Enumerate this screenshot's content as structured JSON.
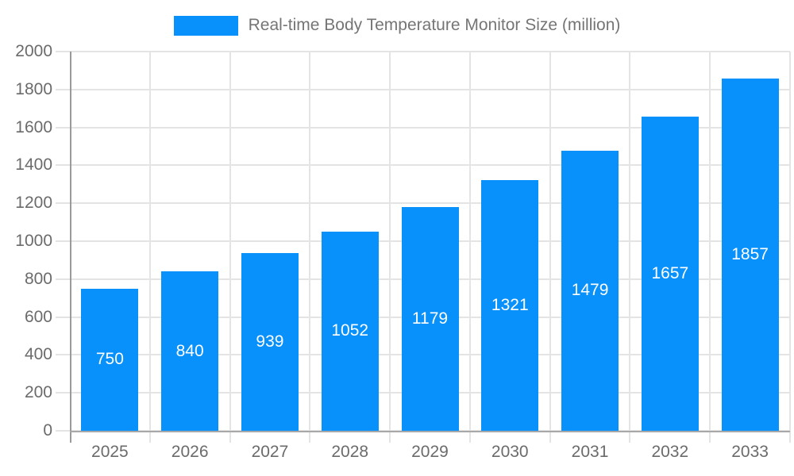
{
  "legend": {
    "label": "Real-time Body Temperature Monitor Size (million)",
    "swatch_color": "#0890fb"
  },
  "chart_data": {
    "type": "bar",
    "series_name": "Real-time Body Temperature Monitor Size (million)",
    "categories": [
      "2025",
      "2026",
      "2027",
      "2028",
      "2029",
      "2030",
      "2031",
      "2032",
      "2033"
    ],
    "values": [
      750,
      840,
      939,
      1052,
      1179,
      1321,
      1479,
      1657,
      1857
    ],
    "ylim": [
      0,
      2000
    ],
    "yticks": [
      0,
      200,
      400,
      600,
      800,
      1000,
      1200,
      1400,
      1600,
      1800,
      2000
    ],
    "grid": true,
    "legend_position": "top-center",
    "bar_label_position": "inside-center",
    "colors": {
      "bar": "#0890fb",
      "bar_label": "#ffffff",
      "gridline": "#e4e4e4",
      "axis_line": "#9a9a9a",
      "tick_label": "#6b6b6b",
      "legend_text": "#757575"
    }
  }
}
